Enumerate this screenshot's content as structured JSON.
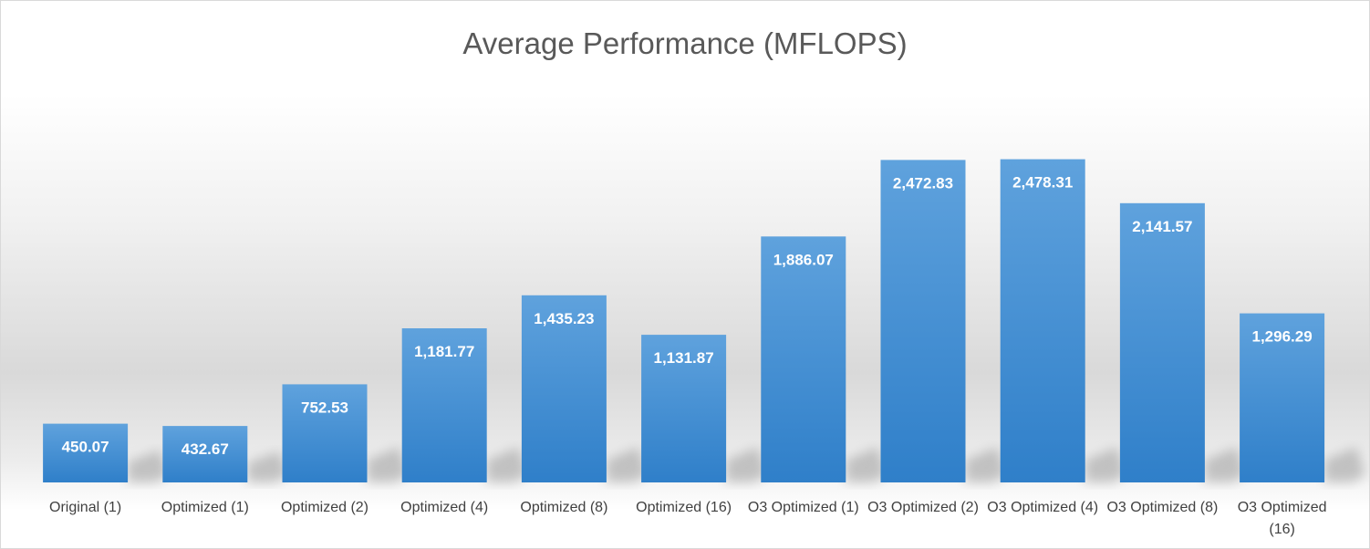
{
  "chart_data": {
    "type": "bar",
    "title": "Average Performance (MFLOPS)",
    "categories": [
      "Original (1)",
      "Optimized (1)",
      "Optimized (2)",
      "Optimized (4)",
      "Optimized (8)",
      "Optimized (16)",
      "O3 Optimized (1)",
      "O3 Optimized (2)",
      "O3 Optimized (4)",
      "O3 Optimized (8)",
      "O3 Optimized (16)"
    ],
    "values": [
      450.07,
      432.67,
      752.53,
      1181.77,
      1435.23,
      1131.87,
      1886.07,
      2472.83,
      2478.31,
      2141.57,
      1296.29
    ],
    "data_labels": [
      "450.07",
      "432.67",
      "752.53",
      "1,181.77",
      "1,435.23",
      "1,131.87",
      "1,886.07",
      "2,472.83",
      "2,478.31",
      "2,141.57",
      "1,296.29"
    ],
    "xlabel": "",
    "ylabel": "",
    "ylim": [
      0,
      2500
    ],
    "grid": false,
    "legend": "none",
    "bar_color": "#4a94d6",
    "bar_color_light": "#5fa2dd",
    "bar_color_dark": "#2f7fc9",
    "label_color": "#ffffff"
  }
}
